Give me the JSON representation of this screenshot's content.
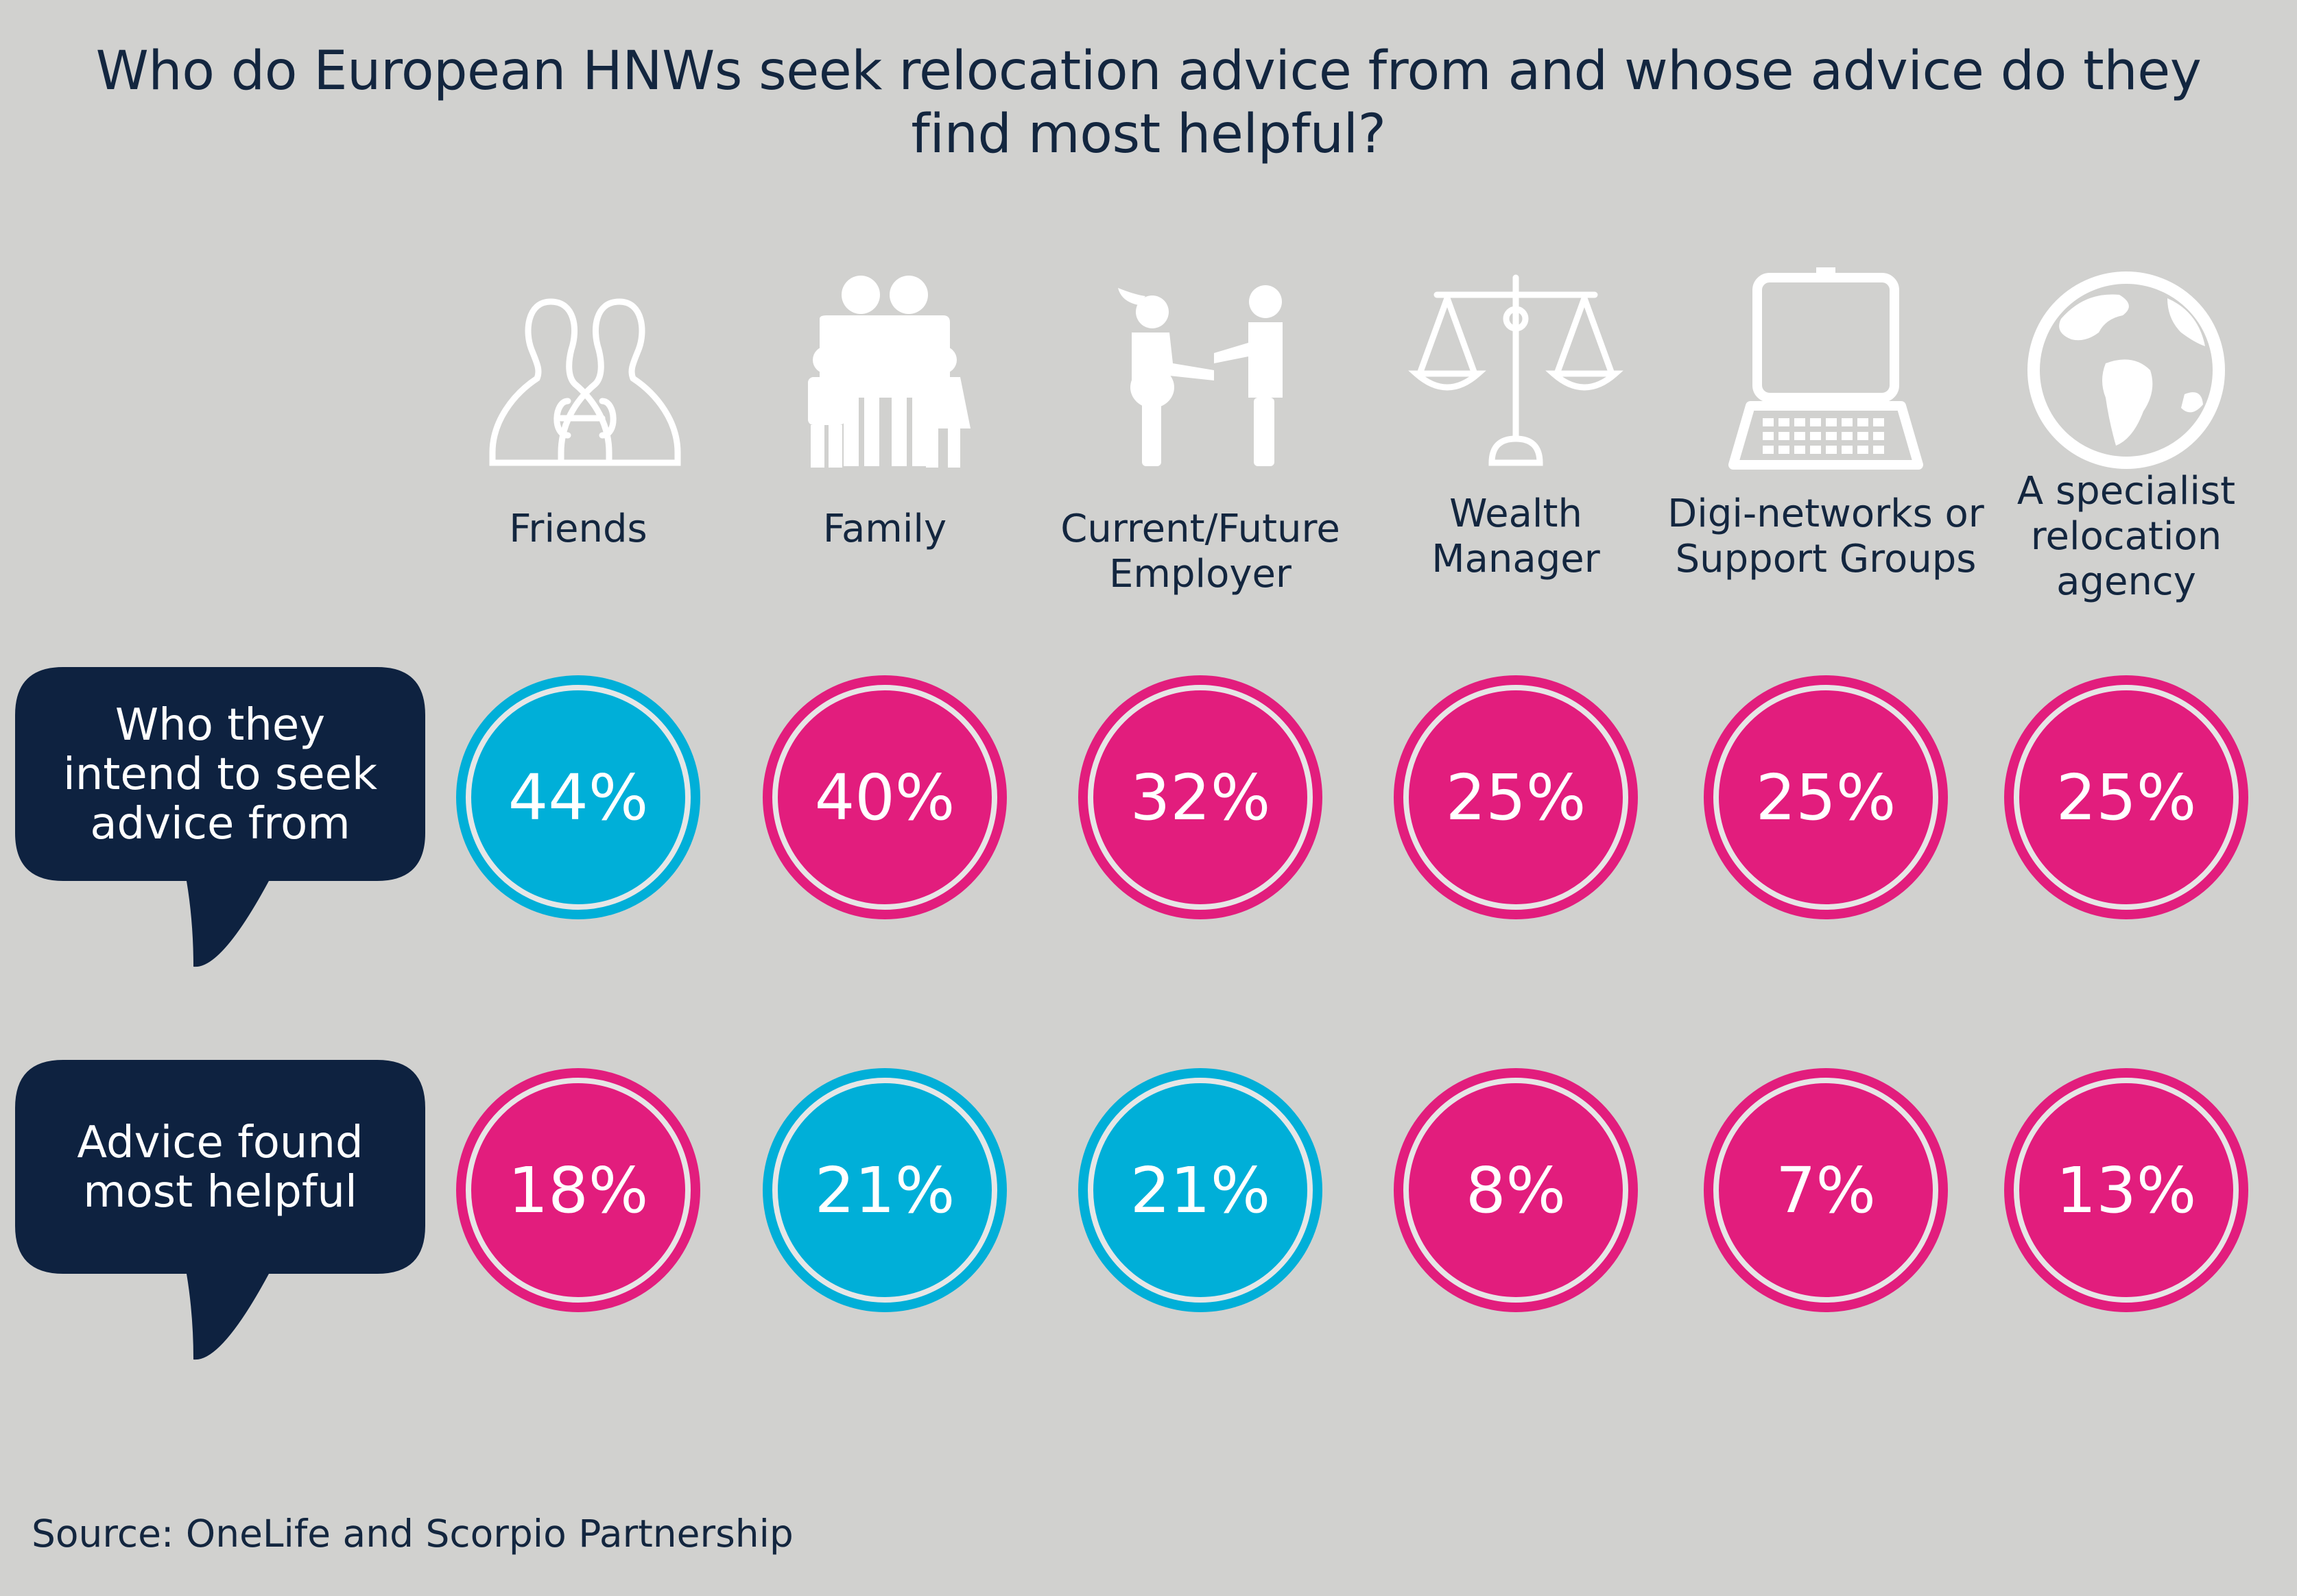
{
  "chart_data": {
    "type": "table",
    "title_lines": [
      "Who do European HNWs seek relocation advice from and whose advice do they",
      "find most helpful?"
    ],
    "categories": [
      {
        "label_lines": [
          "Friends"
        ],
        "icon": "friends-icon"
      },
      {
        "label_lines": [
          "Family"
        ],
        "icon": "family-icon"
      },
      {
        "label_lines": [
          "Current/Future",
          "Employer"
        ],
        "icon": "handshake-icon"
      },
      {
        "label_lines": [
          "Wealth",
          "Manager"
        ],
        "icon": "scales-icon"
      },
      {
        "label_lines": [
          "Digi-networks or",
          "Support Groups"
        ],
        "icon": "laptop-icon"
      },
      {
        "label_lines": [
          "A specialist",
          "relocation",
          "agency"
        ],
        "icon": "globe-icon"
      }
    ],
    "series": [
      {
        "name_lines": [
          "Who they",
          "intend to seek",
          "advice from"
        ],
        "values": [
          44,
          40,
          32,
          25,
          25,
          25
        ],
        "labels": [
          "44%",
          "40%",
          "32%",
          "25%",
          "25%",
          "25%"
        ],
        "highlight_index": [
          0
        ]
      },
      {
        "name_lines": [
          "Advice found",
          "most helpful"
        ],
        "values": [
          18,
          21,
          21,
          8,
          7,
          13
        ],
        "labels": [
          "18%",
          "21%",
          "21%",
          "8%",
          "7%",
          "13%"
        ],
        "highlight_index": [
          1,
          2
        ]
      }
    ],
    "colors": {
      "highlight": "#00afd8",
      "default": "#e21d7d",
      "bubble": "#0e2240",
      "background": "#d1d1cf",
      "text": "#13263f",
      "icon": "#ffffff"
    }
  },
  "source": "Source: OneLife and Scorpio Partnership"
}
